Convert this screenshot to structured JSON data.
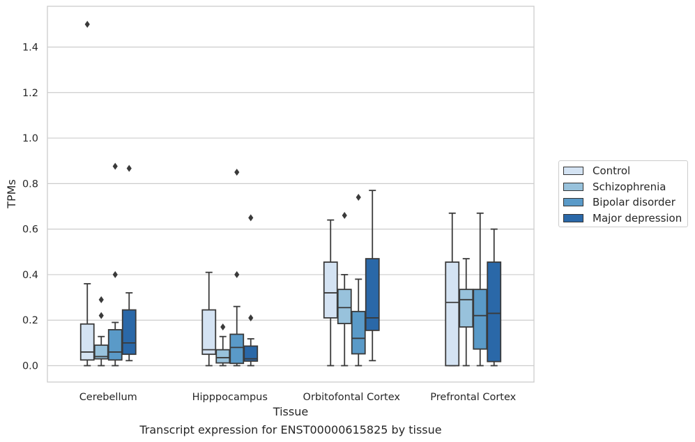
{
  "chart_data": {
    "type": "boxplot",
    "title": "",
    "caption": "Transcript expression for ENST00000615825 by tissue",
    "xlabel": "Tissue",
    "ylabel": "TPMs",
    "ylim": [
      -0.075,
      1.58
    ],
    "yticks": [
      0.0,
      0.2,
      0.4,
      0.6,
      0.8,
      1.0,
      1.2,
      1.4
    ],
    "ytick_labels": [
      "0.0",
      "0.2",
      "0.4",
      "0.6",
      "0.8",
      "1.0",
      "1.2",
      "1.4"
    ],
    "grid": "horizontal",
    "legend_position": "right",
    "categories": [
      "Cerebellum",
      "Hipppocampus",
      "Orbitofontal Cortex",
      "Prefrontal Cortex"
    ],
    "series": [
      {
        "name": "Control",
        "color": "#d4e3f3",
        "boxes": [
          {
            "whislo": 0.0,
            "q1": 0.025,
            "med": 0.06,
            "q3": 0.183,
            "whishi": 0.36,
            "fliers": [
              1.5
            ]
          },
          {
            "whislo": 0.0,
            "q1": 0.05,
            "med": 0.07,
            "q3": 0.245,
            "whishi": 0.41,
            "fliers": []
          },
          {
            "whislo": 0.0,
            "q1": 0.21,
            "med": 0.32,
            "q3": 0.455,
            "whishi": 0.64,
            "fliers": []
          },
          {
            "whislo": 0.0,
            "q1": 0.0,
            "med": 0.278,
            "q3": 0.455,
            "whishi": 0.67,
            "fliers": []
          }
        ]
      },
      {
        "name": "Schizophrenia",
        "color": "#98c2dc",
        "boxes": [
          {
            "whislo": 0.0,
            "q1": 0.03,
            "med": 0.04,
            "q3": 0.09,
            "whishi": 0.128,
            "fliers": [
              0.22,
              0.29
            ]
          },
          {
            "whislo": 0.0,
            "q1": 0.012,
            "med": 0.035,
            "q3": 0.07,
            "whishi": 0.128,
            "fliers": [
              0.17
            ]
          },
          {
            "whislo": 0.0,
            "q1": 0.185,
            "med": 0.255,
            "q3": 0.335,
            "whishi": 0.4,
            "fliers": [
              0.66
            ]
          },
          {
            "whislo": 0.0,
            "q1": 0.17,
            "med": 0.29,
            "q3": 0.335,
            "whishi": 0.47,
            "fliers": []
          }
        ]
      },
      {
        "name": "Bipolar disorder",
        "color": "#5a9ac8",
        "boxes": [
          {
            "whislo": 0.0,
            "q1": 0.025,
            "med": 0.06,
            "q3": 0.158,
            "whishi": 0.19,
            "fliers": [
              0.4,
              0.876
            ]
          },
          {
            "whislo": 0.0,
            "q1": 0.01,
            "med": 0.08,
            "q3": 0.138,
            "whishi": 0.26,
            "fliers": [
              0.4,
              0.85
            ]
          },
          {
            "whislo": 0.0,
            "q1": 0.052,
            "med": 0.12,
            "q3": 0.238,
            "whishi": 0.38,
            "fliers": [
              0.74
            ]
          },
          {
            "whislo": 0.0,
            "q1": 0.073,
            "med": 0.22,
            "q3": 0.335,
            "whishi": 0.67,
            "fliers": []
          }
        ]
      },
      {
        "name": "Major depression",
        "color": "#2a68a8",
        "boxes": [
          {
            "whislo": 0.022,
            "q1": 0.05,
            "med": 0.1,
            "q3": 0.245,
            "whishi": 0.32,
            "fliers": [
              0.867
            ]
          },
          {
            "whislo": 0.0,
            "q1": 0.02,
            "med": 0.03,
            "q3": 0.086,
            "whishi": 0.118,
            "fliers": [
              0.21,
              0.65
            ]
          },
          {
            "whislo": 0.022,
            "q1": 0.155,
            "med": 0.21,
            "q3": 0.47,
            "whishi": 0.77,
            "fliers": []
          },
          {
            "whislo": 0.0,
            "q1": 0.018,
            "med": 0.23,
            "q3": 0.455,
            "whishi": 0.6,
            "fliers": []
          }
        ]
      }
    ]
  }
}
